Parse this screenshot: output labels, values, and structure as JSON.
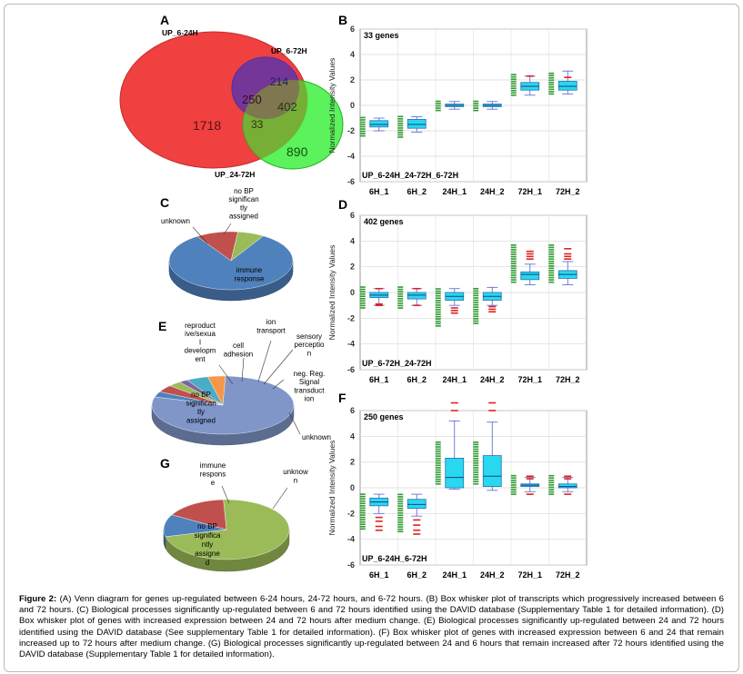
{
  "panels": {
    "A": {
      "letter": "A",
      "labels": {
        "set1": "UP_6-24H",
        "set2": "UP_6-72H",
        "set3": "UP_24-72H"
      },
      "regions": {
        "only_6_24": "1718",
        "only_6_72": "214",
        "only_24_72": "890",
        "s1_s2": "250",
        "s2_s3": "402",
        "all": "33"
      },
      "colors": {
        "set1": "#f04040",
        "set2": "#4a4af5",
        "set3": "#3ef03e"
      }
    },
    "C": {
      "letter": "C",
      "slices": [
        {
          "label": "immune response",
          "lines": [
            "immune",
            "response"
          ],
          "value": 82,
          "color": "#4f81bd"
        },
        {
          "label": "unknown",
          "lines": [
            "unknown"
          ],
          "value": 11,
          "color": "#c0504d"
        },
        {
          "label": "no BP significantly assigned",
          "lines": [
            "no BP",
            "significan",
            "tly",
            "assigned"
          ],
          "value": 7,
          "color": "#9bbb59"
        }
      ]
    },
    "E": {
      "letter": "E",
      "slices": [
        {
          "label": "no BP significantly assigned",
          "lines": [
            "no BP",
            "significan",
            "tly",
            "assigned"
          ],
          "value": 79,
          "color": "#8096c8"
        },
        {
          "label": "reproductive/sexual development",
          "lines": [
            "reproduct",
            "ive/sexua",
            "l",
            "developm",
            "ent"
          ],
          "value": 3,
          "color": "#4f81bd"
        },
        {
          "label": "cell adhesion",
          "lines": [
            "cell",
            "adhesion"
          ],
          "value": 4,
          "color": "#c0504d"
        },
        {
          "label": "ion transport",
          "lines": [
            "ion",
            "transport"
          ],
          "value": 3,
          "color": "#9bbb59"
        },
        {
          "label": "sensory perception",
          "lines": [
            "sensory",
            "perceptio",
            "n"
          ],
          "value": 2,
          "color": "#8064a2"
        },
        {
          "label": "neg. Reg. Signal transduction",
          "lines": [
            "neg. Reg.",
            "Signal",
            "transduct",
            "ion"
          ],
          "value": 5,
          "color": "#4bacc6"
        },
        {
          "label": "unknown",
          "lines": [
            "unknown"
          ],
          "value": 4,
          "color": "#f79646"
        }
      ]
    },
    "G": {
      "letter": "G",
      "slices": [
        {
          "label": "no BP significantly assigned",
          "lines": [
            "no BP",
            "significa",
            "ntly",
            "assigne",
            "d"
          ],
          "value": 72,
          "color": "#9bbb59"
        },
        {
          "label": "immune response",
          "lines": [
            "immune",
            "respons",
            "e"
          ],
          "value": 12,
          "color": "#4f81bd"
        },
        {
          "label": "unknown",
          "lines": [
            "unknow",
            "n"
          ],
          "value": 16,
          "color": "#c0504d"
        }
      ]
    }
  },
  "chart_data": [
    {
      "panel": "B",
      "type": "box",
      "count_label": "33 genes",
      "footer": "UP_6-24H_24-72H_6-72H",
      "ylabel": "Normalized Intensity Values",
      "ylim": [
        -6,
        6
      ],
      "yticks": [
        "6",
        "4",
        "2",
        "0",
        "-2",
        "-4",
        "-6"
      ],
      "categories": [
        "6H_1",
        "6H_2",
        "24H_1",
        "24H_2",
        "72H_1",
        "72H_2"
      ],
      "boxes": [
        {
          "min": -2.0,
          "q1": -1.7,
          "median": -1.5,
          "q3": -1.2,
          "max": -1.0,
          "spread": [
            -2.4,
            -0.8
          ]
        },
        {
          "min": -2.1,
          "q1": -1.8,
          "median": -1.5,
          "q3": -1.1,
          "max": -0.9,
          "spread": [
            -2.5,
            -0.8
          ]
        },
        {
          "min": -0.3,
          "q1": -0.1,
          "median": 0.0,
          "q3": 0.1,
          "max": 0.3,
          "spread": [
            -0.4,
            0.4
          ]
        },
        {
          "min": -0.3,
          "q1": -0.1,
          "median": 0.0,
          "q3": 0.1,
          "max": 0.3,
          "spread": [
            -0.4,
            0.4
          ]
        },
        {
          "min": 0.8,
          "q1": 1.2,
          "median": 1.5,
          "q3": 1.8,
          "max": 2.3,
          "spread": [
            0.8,
            2.5
          ]
        },
        {
          "min": 0.9,
          "q1": 1.2,
          "median": 1.5,
          "q3": 1.9,
          "max": 2.7,
          "spread": [
            0.9,
            2.6
          ]
        }
      ],
      "outliers": [
        [],
        [],
        [],
        [],
        [
          2.3
        ],
        [
          2.2
        ]
      ]
    },
    {
      "panel": "D",
      "type": "box",
      "count_label": "402 genes",
      "footer": "UP_6-72H_24-72H",
      "ylabel": "Normalized Intensity Values",
      "ylim": [
        -6,
        6
      ],
      "yticks": [
        "6",
        "4",
        "2",
        "0",
        "-2",
        "-4",
        "-6"
      ],
      "categories": [
        "6H_1",
        "6H_2",
        "24H_1",
        "24H_2",
        "72H_1",
        "72H_2"
      ],
      "boxes": [
        {
          "min": -1.0,
          "q1": -0.4,
          "median": -0.2,
          "q3": 0.0,
          "max": 0.3,
          "spread": [
            -1.2,
            0.5
          ]
        },
        {
          "min": -1.0,
          "q1": -0.5,
          "median": -0.2,
          "q3": 0.0,
          "max": 0.3,
          "spread": [
            -1.2,
            0.5
          ]
        },
        {
          "min": -1.0,
          "q1": -0.6,
          "median": -0.3,
          "q3": 0.0,
          "max": 0.3,
          "spread": [
            -2.6,
            0.3
          ]
        },
        {
          "min": -1.0,
          "q1": -0.6,
          "median": -0.3,
          "q3": 0.0,
          "max": 0.4,
          "spread": [
            -2.4,
            0.4
          ]
        },
        {
          "min": 0.6,
          "q1": 1.0,
          "median": 1.4,
          "q3": 1.6,
          "max": 2.2,
          "spread": [
            0.8,
            3.8
          ]
        },
        {
          "min": 0.6,
          "q1": 1.1,
          "median": 1.4,
          "q3": 1.7,
          "max": 2.4,
          "spread": [
            0.8,
            3.8
          ]
        }
      ],
      "outliers": [
        [
          -1.0,
          -0.9,
          0.3
        ],
        [
          -1.0,
          0.3
        ],
        [
          -1.2,
          -1.4,
          -1.6
        ],
        [
          -1.1,
          -1.3,
          -1.5
        ],
        [
          2.6,
          2.8,
          3.0,
          3.2
        ],
        [
          2.6,
          2.8,
          3.0,
          3.4
        ]
      ]
    },
    {
      "panel": "F",
      "type": "box",
      "count_label": "250 genes",
      "footer": "UP_6-24H_6-72H",
      "ylabel": "Normalized Intensity Values",
      "ylim": [
        -6,
        6
      ],
      "yticks": [
        "6",
        "4",
        "2",
        "0",
        "-2",
        "-4",
        "-6"
      ],
      "categories": [
        "6H_1",
        "6H_2",
        "24H_1",
        "24H_2",
        "72H_1",
        "72H_2"
      ],
      "boxes": [
        {
          "min": -2.0,
          "q1": -1.4,
          "median": -1.1,
          "q3": -0.8,
          "max": -0.5,
          "spread": [
            -3.2,
            -0.4
          ]
        },
        {
          "min": -2.2,
          "q1": -1.6,
          "median": -1.3,
          "q3": -0.9,
          "max": -0.5,
          "spread": [
            -3.4,
            -0.5
          ]
        },
        {
          "min": -0.1,
          "q1": 0.0,
          "median": 0.8,
          "q3": 2.3,
          "max": 5.2,
          "spread": [
            0.3,
            3.7
          ]
        },
        {
          "min": -0.2,
          "q1": 0.1,
          "median": 0.9,
          "q3": 2.5,
          "max": 5.1,
          "spread": [
            0.3,
            3.7
          ]
        },
        {
          "min": -0.3,
          "q1": 0.1,
          "median": 0.2,
          "q3": 0.3,
          "max": 0.8,
          "spread": [
            -0.5,
            1.0
          ]
        },
        {
          "min": -0.3,
          "q1": 0.0,
          "median": 0.1,
          "q3": 0.3,
          "max": 0.8,
          "spread": [
            -0.5,
            1.0
          ]
        }
      ],
      "outliers": [
        [
          -2.3,
          -2.6,
          -3.0,
          -3.3
        ],
        [
          -2.5,
          -2.9,
          -3.3,
          -3.6
        ],
        [
          6.6,
          6.0
        ],
        [
          6.6,
          6.0
        ],
        [
          0.7,
          0.9,
          -0.5
        ],
        [
          0.7,
          0.9,
          -0.5
        ]
      ]
    }
  ],
  "caption": {
    "label": "Figure 2:",
    "text": "(A) Venn diagram for genes up-regulated between 6-24 hours, 24-72 hours, and 6-72 hours. (B) Box whisker plot of transcripts which progressively increased between 6 and 72 hours. (C) Biological processes significantly up-regulated between 6 and 72 hours identified using the DAVID database (Supplementary Table 1 for detailed information). (D) Box whisker plot of genes with increased expression between 24 and 72 hours after medium change. (E) Biological processes significantly up-regulated between 24 and 72 hours identified using the DAVID database (See supplementary Table 1 for detailed information). (F) Box whisker plot of genes with increased expression between 6 and 24 that remain increased up to 72 hours after medium change. (G) Biological processes significantly up-regulated between 24 and 6 hours that remain increased after 72 hours identified using the DAVID database (Supplementary Table 1 for detailed information)."
  }
}
